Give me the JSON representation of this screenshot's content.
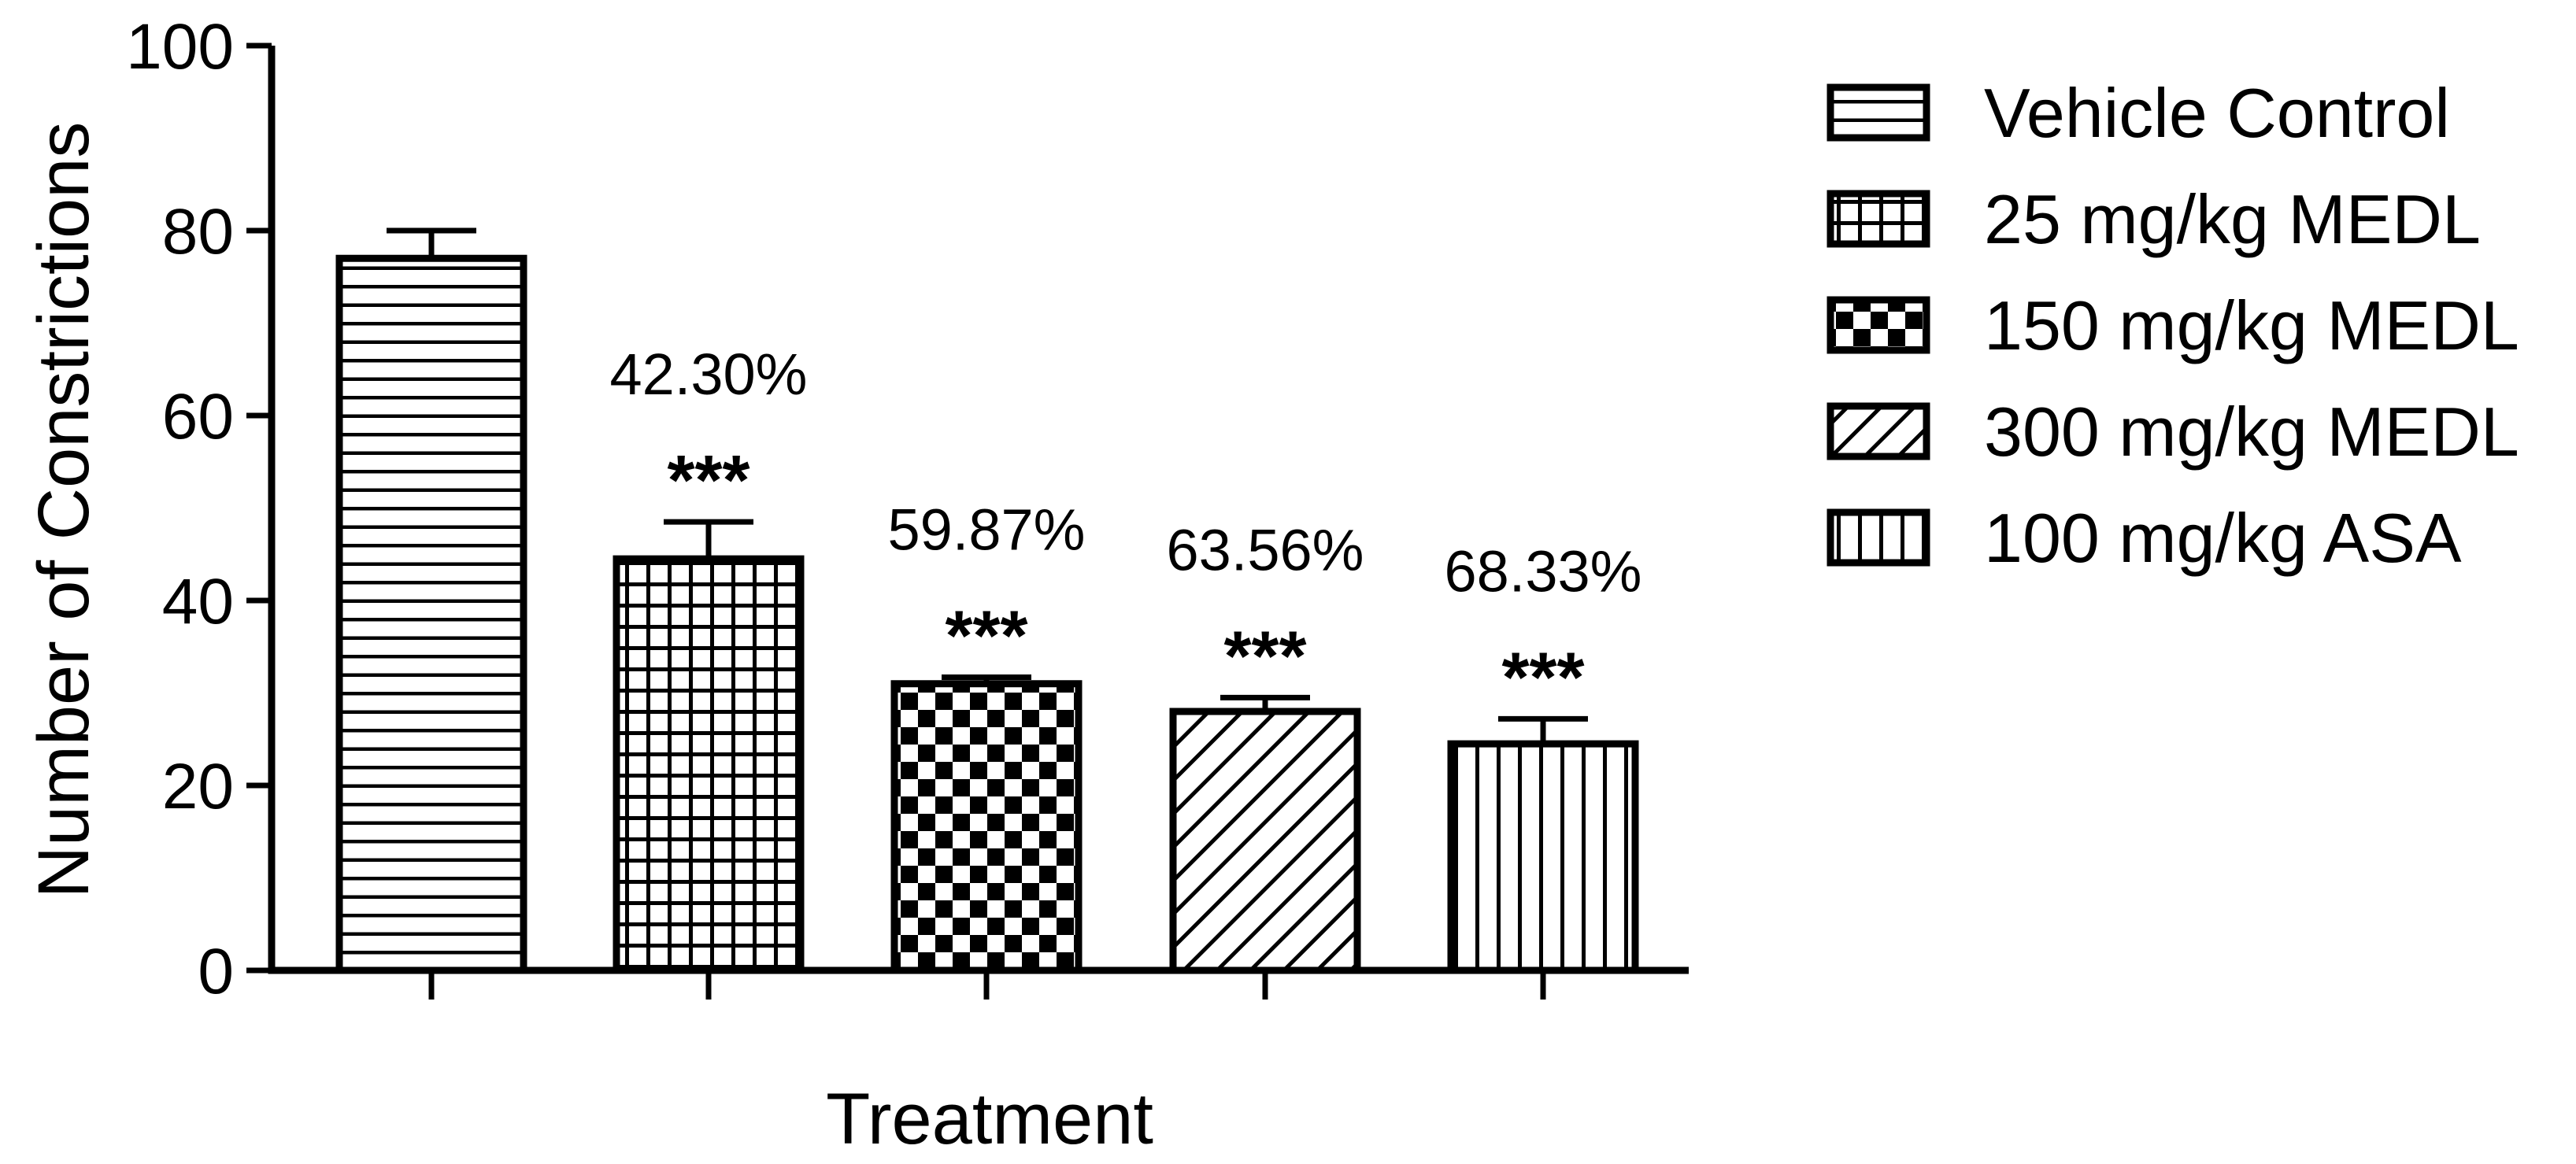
{
  "chart_data": {
    "type": "bar",
    "xlabel": "Treatment",
    "ylabel": "Number of Constrictions",
    "ylim": [
      0,
      100
    ],
    "yticks": [
      0,
      20,
      40,
      60,
      80,
      100
    ],
    "grid": false,
    "legend_position": "right",
    "categories": [
      "Vehicle Control",
      "25 mg/kg MEDL",
      "150 mg/kg MEDL",
      "300 mg/kg MEDL",
      "100 mg/kg ASA"
    ],
    "values": [
      77,
      44.5,
      31,
      28,
      24.5
    ],
    "error": [
      3,
      4,
      0.7,
      1.5,
      2.7
    ],
    "patterns": [
      "horizontal-lines",
      "grid",
      "checkerboard",
      "diagonal-lines",
      "vertical-lines"
    ],
    "annotations": [
      {
        "percent": "",
        "significance": ""
      },
      {
        "percent": "42.30%",
        "significance": "***"
      },
      {
        "percent": "59.87%",
        "significance": "***"
      },
      {
        "percent": "63.56%",
        "significance": "***"
      },
      {
        "percent": "68.33%",
        "significance": "***"
      }
    ],
    "legend": [
      "Vehicle Control",
      "25 mg/kg MEDL",
      "150 mg/kg MEDL",
      "300 mg/kg MEDL",
      "100 mg/kg ASA"
    ],
    "colors": {
      "stroke": "#000000",
      "fill": "#ffffff"
    }
  }
}
